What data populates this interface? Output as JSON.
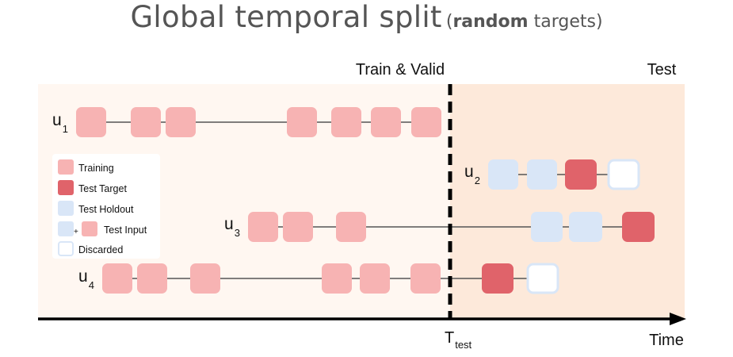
{
  "title": {
    "main": "Global temporal split",
    "paren_open": "(",
    "paren_bold": "random",
    "paren_rest": " targets)"
  },
  "regions": {
    "train_label": "Train & Valid",
    "test_label": "Test"
  },
  "axis": {
    "label": "Time",
    "split_label": "T",
    "split_sub": "test"
  },
  "users": [
    {
      "name": "u",
      "sub": "1"
    },
    {
      "name": "u",
      "sub": "2"
    },
    {
      "name": "u",
      "sub": "3"
    },
    {
      "name": "u",
      "sub": "4"
    }
  ],
  "legend": {
    "training": "Training",
    "test_target": "Test Target",
    "test_holdout": "Test Holdout",
    "plus": "+",
    "test_input": "Test Input",
    "discarded": "Discarded"
  },
  "colors": {
    "train_bg": "#fff7f1",
    "test_bg": "#fde9da",
    "training": "#f7b3b3",
    "test_target": "#e0636a",
    "test_holdout": "#d9e6f7",
    "discarded_border": "#d9e6f7"
  }
}
